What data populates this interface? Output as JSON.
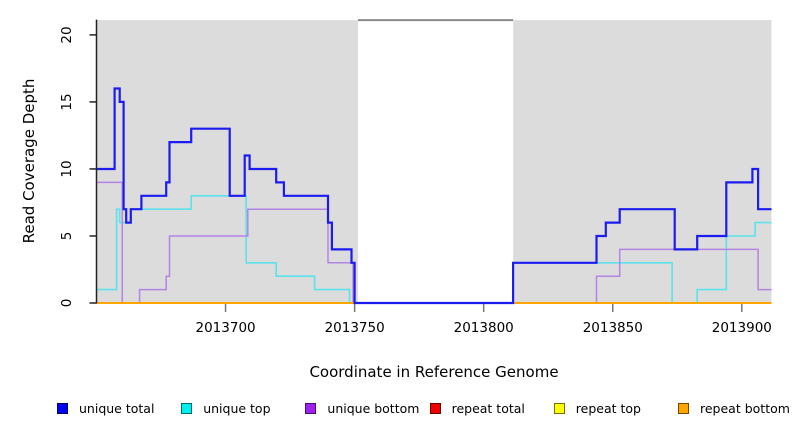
{
  "chart_data": {
    "type": "line",
    "subtype": "step-coverage-plot",
    "title": "",
    "xlabel": "Coordinate in Reference Genome",
    "ylabel": "Read Coverage Depth",
    "x_ticks": [
      2013700,
      2013750,
      2013800,
      2013850,
      2013900
    ],
    "y_ticks": [
      0,
      5,
      10,
      15,
      20
    ],
    "xlim": [
      2013650,
      2013911.5
    ],
    "ylim": [
      0,
      21.1
    ],
    "grid": false,
    "legend_position": "bottom",
    "panel_background": "#dcdcdc",
    "covered_regions": [
      [
        2013650,
        2013751.3
      ],
      [
        2013811.4,
        2013911.5
      ]
    ],
    "gap_region": {
      "start": 2013751.3,
      "end": 2013811.4,
      "fill": "#ffffff",
      "border_top_color": "#8a8a8a"
    },
    "series": [
      {
        "name": "unique total",
        "color": "#1c1cf0",
        "width": 2.2,
        "z": 6,
        "pieces": [
          {
            "steps": [
              [
                2013650,
                10
              ],
              [
                2013657,
                16
              ],
              [
                2013659,
                15
              ],
              [
                2013660.5,
                7
              ],
              [
                2013661.5,
                6
              ],
              [
                2013663.3,
                7
              ],
              [
                2013667.4,
                8
              ],
              [
                2013677,
                9
              ],
              [
                2013678.3,
                12
              ],
              [
                2013686.7,
                13
              ],
              [
                2013701.6,
                8
              ],
              [
                2013707.4,
                11
              ],
              [
                2013709.3,
                10
              ],
              [
                2013719.6,
                9
              ],
              [
                2013722.6,
                8
              ],
              [
                2013739.7,
                6
              ],
              [
                2013741.2,
                4
              ],
              [
                2013748.8,
                3
              ],
              [
                2013750,
                0
              ],
              [
                2013811.4,
                3
              ],
              [
                2013843.7,
                5
              ],
              [
                2013847.3,
                6
              ],
              [
                2013852.7,
                7
              ],
              [
                2013874,
                4
              ],
              [
                2013882.7,
                5
              ],
              [
                2013894,
                9
              ],
              [
                2013904.1,
                10
              ],
              [
                2013906.3,
                7
              ]
            ],
            "end": 2013911.5
          }
        ]
      },
      {
        "name": "unique top",
        "color": "#5ce2ea",
        "width": 1.6,
        "z": 1,
        "pieces": [
          {
            "steps": [
              [
                2013650,
                1
              ],
              [
                2013657.8,
                7
              ],
              [
                2013659,
                6
              ],
              [
                2013663.3,
                7
              ],
              [
                2013686.7,
                8
              ],
              [
                2013708,
                3
              ],
              [
                2013719.6,
                2
              ],
              [
                2013734.5,
                1
              ],
              [
                2013748,
                0
              ],
              [
                2013811.4,
                3
              ],
              [
                2013873,
                0
              ],
              [
                2013882.7,
                1
              ],
              [
                2013894,
                5
              ],
              [
                2013905.2,
                6
              ]
            ],
            "end": 2013911.5
          }
        ]
      },
      {
        "name": "unique bottom",
        "color": "#b583e3",
        "width": 1.5,
        "z": 2,
        "pieces": [
          {
            "steps": [
              [
                2013650,
                9
              ],
              [
                2013660,
                0
              ],
              [
                2013666.7,
                1
              ],
              [
                2013677,
                2
              ],
              [
                2013678.3,
                5
              ],
              [
                2013708.6,
                7
              ],
              [
                2013739.7,
                3
              ],
              [
                2013749.4,
                0
              ],
              [
                2013843.7,
                2
              ],
              [
                2013852.7,
                4
              ],
              [
                2013906.3,
                1
              ]
            ],
            "end": 2013911.5
          }
        ]
      },
      {
        "name": "repeat total",
        "color": "#ee0000",
        "width": 1.5,
        "z": 3,
        "pieces": [
          {
            "steps": [
              [
                2013650,
                0
              ]
            ],
            "end": 2013751.3
          },
          {
            "steps": [
              [
                2013811.4,
                0
              ]
            ],
            "end": 2013911.5
          }
        ]
      },
      {
        "name": "repeat top",
        "color": "#ffff00",
        "width": 1.5,
        "z": 4,
        "pieces": [
          {
            "steps": [
              [
                2013650,
                0
              ]
            ],
            "end": 2013751.3
          },
          {
            "steps": [
              [
                2013811.4,
                0
              ]
            ],
            "end": 2013911.5
          }
        ]
      },
      {
        "name": "repeat bottom",
        "color": "#ffa500",
        "width": 2,
        "z": 5,
        "pieces": [
          {
            "steps": [
              [
                2013650,
                0
              ]
            ],
            "end": 2013751.3
          },
          {
            "steps": [
              [
                2013811.4,
                0
              ]
            ],
            "end": 2013911.5
          }
        ]
      }
    ],
    "legend": [
      {
        "label": "unique total",
        "color": "#0000f5"
      },
      {
        "label": "unique top",
        "color": "#00eeee"
      },
      {
        "label": "unique bottom",
        "color": "#a020f0"
      },
      {
        "label": "repeat total",
        "color": "#ee0000"
      },
      {
        "label": "repeat top",
        "color": "#ffff00"
      },
      {
        "label": "repeat bottom",
        "color": "#ffa500"
      }
    ],
    "axis_colors": {
      "y_axis": "#222222",
      "x_tick": "#777777"
    }
  }
}
